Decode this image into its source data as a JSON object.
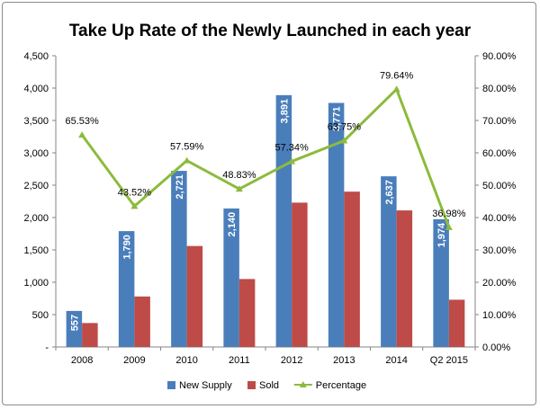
{
  "chart_data": {
    "type": "bar",
    "title": "Take Up Rate of the Newly Launched in each year",
    "categories": [
      "2008",
      "2009",
      "2010",
      "2011",
      "2012",
      "2013",
      "2014",
      "Q2 2015"
    ],
    "series": [
      {
        "name": "New Supply",
        "kind": "bar",
        "axis": "left",
        "color": "#4a7ebb",
        "values": [
          557,
          1790,
          2721,
          2140,
          3891,
          3771,
          2637,
          1974
        ],
        "labels": [
          "557",
          "1,790",
          "2,721",
          "2,140",
          "3,891",
          "3,771",
          "2,637",
          "1,974"
        ]
      },
      {
        "name": "Sold",
        "kind": "bar",
        "axis": "left",
        "color": "#be4b48",
        "values": [
          370,
          780,
          1560,
          1050,
          2230,
          2400,
          2110,
          730
        ]
      },
      {
        "name": "Percentage",
        "kind": "line",
        "axis": "right",
        "color": "#8cbb3c",
        "values": [
          65.53,
          43.52,
          57.59,
          48.83,
          57.34,
          63.75,
          79.64,
          36.98
        ],
        "labels": [
          "65.53%",
          "43.52%",
          "57.59%",
          "48.83%",
          "57.34%",
          "63.75%",
          "79.64%",
          "36.98%"
        ]
      }
    ],
    "y_left": {
      "ylim": [
        0,
        4500
      ],
      "ticks": [
        0,
        500,
        1000,
        1500,
        2000,
        2500,
        3000,
        3500,
        4000,
        4500
      ],
      "tick_labels": [
        "-",
        "500",
        "1,000",
        "1,500",
        "2,000",
        "2,500",
        "3,000",
        "3,500",
        "4,000",
        "4,500"
      ]
    },
    "y_right": {
      "ylim": [
        0,
        90
      ],
      "ticks": [
        0,
        10,
        20,
        30,
        40,
        50,
        60,
        70,
        80,
        90
      ],
      "tick_labels": [
        "0.00%",
        "10.00%",
        "20.00%",
        "30.00%",
        "40.00%",
        "50.00%",
        "60.00%",
        "70.00%",
        "80.00%",
        "90.00%"
      ]
    },
    "grid": false,
    "legend": {
      "position": "bottom",
      "entries": [
        "New Supply",
        "Sold",
        "Percentage"
      ]
    }
  }
}
